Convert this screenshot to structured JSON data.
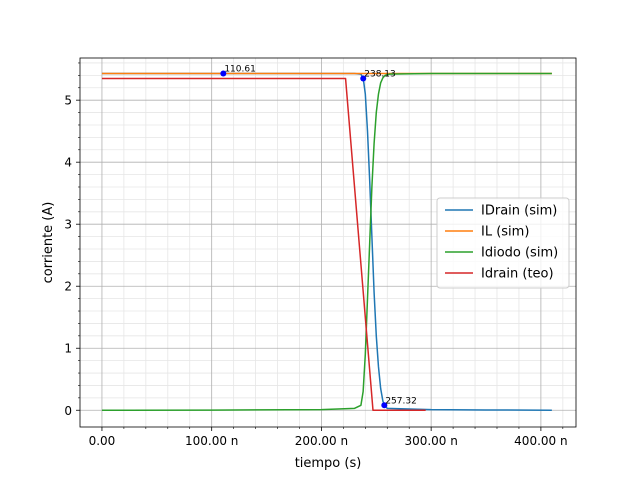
{
  "chart_data": {
    "type": "line",
    "title": "",
    "xlabel": "tiempo (s)",
    "ylabel": "corriente (A)",
    "xlim": [
      -20,
      432
    ],
    "ylim": [
      -0.27,
      5.68
    ],
    "x_unit_note": "x values in nanoseconds; tick labels suffixed with n",
    "xticks": [
      0,
      100,
      200,
      300,
      400
    ],
    "xtick_labels": [
      "0.00",
      "100.00 n",
      "200.00 n",
      "300.00 n",
      "400.00 n"
    ],
    "yticks": [
      0,
      1,
      2,
      3,
      4,
      5
    ],
    "ytick_labels": [
      "0",
      "1",
      "2",
      "3",
      "4",
      "5"
    ],
    "grid": true,
    "minor_grid": true,
    "legend_position": "center-right",
    "series": [
      {
        "name": "IDrain (sim)",
        "color": "#1f77b4",
        "x": [
          0,
          110.61,
          230,
          236,
          238.13,
          240,
          242,
          244,
          246,
          248,
          250,
          252,
          254,
          256,
          257.32,
          260,
          300,
          350,
          410
        ],
        "y": [
          5.43,
          5.43,
          5.43,
          5.42,
          5.35,
          5.1,
          4.5,
          3.7,
          2.8,
          1.9,
          1.2,
          0.7,
          0.35,
          0.15,
          0.08,
          0.03,
          0.01,
          0.005,
          0.0
        ]
      },
      {
        "name": "IL (sim)",
        "color": "#ff7f0e",
        "x": [
          0,
          410
        ],
        "y": [
          5.43,
          5.43
        ]
      },
      {
        "name": "Idiodo (sim)",
        "color": "#2ca02c",
        "x": [
          0,
          100,
          200,
          230,
          236,
          238,
          240,
          242,
          244,
          246,
          248,
          250,
          252,
          254,
          256,
          258,
          262,
          300,
          410
        ],
        "y": [
          0.0,
          0.003,
          0.01,
          0.03,
          0.08,
          0.3,
          0.9,
          1.8,
          2.7,
          3.6,
          4.3,
          4.8,
          5.1,
          5.28,
          5.36,
          5.4,
          5.42,
          5.43,
          5.43
        ]
      },
      {
        "name": "Idrain (teo)",
        "color": "#d62728",
        "x": [
          0,
          222,
          247,
          295
        ],
        "y": [
          5.35,
          5.35,
          0.0,
          0.0
        ]
      }
    ],
    "markers": [
      {
        "x": 110.61,
        "y": 5.43,
        "label": "110.61"
      },
      {
        "x": 238.13,
        "y": 5.35,
        "label": "238.13"
      },
      {
        "x": 257.32,
        "y": 0.08,
        "label": "257.32"
      }
    ],
    "marker_color": "#0000ff"
  }
}
